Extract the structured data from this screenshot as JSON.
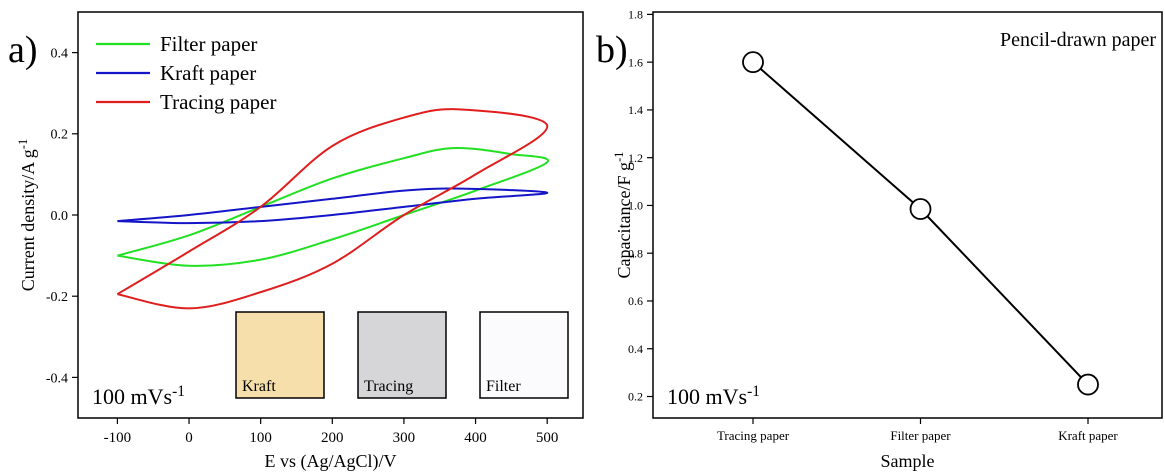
{
  "chart_data": [
    {
      "type": "line",
      "panel_label": "a)",
      "smooth": true,
      "x_label": "E vs (Ag/AgCl)/V",
      "y_label": "Current density/A g",
      "y_label_sup": "-1",
      "annotation": "100 mVs",
      "annotation_sup": "-1",
      "xlim": [
        -155,
        550
      ],
      "ylim": [
        -0.5,
        0.5
      ],
      "xticks": [
        -100,
        0,
        100,
        200,
        300,
        400,
        500
      ],
      "yticks": [
        -0.4,
        -0.2,
        {
          "value": 0,
          "label": "0.0"
        },
        0.2,
        0.4
      ],
      "series": [
        {
          "name": "Filter paper",
          "color": "#22e022",
          "x": [
            -100,
            0,
            100,
            200,
            300,
            370,
            450,
            500,
            400,
            300,
            200,
            100,
            0,
            -100
          ],
          "values": [
            -0.1,
            -0.05,
            0.02,
            0.09,
            0.14,
            0.165,
            0.15,
            0.13,
            0.06,
            0.0,
            -0.06,
            -0.11,
            -0.125,
            -0.1
          ]
        },
        {
          "name": "Kraft paper",
          "color": "#1515c8",
          "x": [
            -100,
            0,
            100,
            200,
            300,
            380,
            500,
            400,
            300,
            200,
            100,
            0,
            -100
          ],
          "values": [
            -0.015,
            0.0,
            0.02,
            0.04,
            0.06,
            0.065,
            0.055,
            0.04,
            0.02,
            0.0,
            -0.015,
            -0.02,
            -0.015
          ]
        },
        {
          "name": "Tracing paper",
          "color": "#e01e1e",
          "x": [
            -100,
            0,
            100,
            200,
            300,
            380,
            500,
            400,
            300,
            200,
            100,
            0,
            -100
          ],
          "values": [
            -0.195,
            -0.09,
            0.02,
            0.17,
            0.24,
            0.26,
            0.22,
            0.1,
            0.0,
            -0.12,
            -0.19,
            -0.23,
            -0.195
          ]
        }
      ],
      "insets": [
        {
          "label": "Kraft",
          "color": "#f6dfaa"
        },
        {
          "label": "Tracing",
          "color": "#d6d6d8"
        },
        {
          "label": "Filter",
          "color": "#fbfbfd"
        }
      ]
    },
    {
      "type": "line",
      "panel_label": "b)",
      "smooth": false,
      "title": "Pencil-drawn paper",
      "x_label": "Sample",
      "y_label": "Capacitance/F g",
      "y_label_sup": "-1",
      "annotation": "100 mVs",
      "annotation_sup": "-1",
      "categories": [
        "Tracing paper",
        "Filter paper",
        "Kraft paper"
      ],
      "ylim": [
        0.11,
        1.81
      ],
      "yticks": [
        0.2,
        0.4,
        0.6,
        0.8,
        {
          "value": 1,
          "label": "1.0"
        },
        1.2,
        1.4,
        1.6,
        1.8
      ],
      "series": [
        {
          "color": "#000000",
          "values": [
            1.6,
            0.985,
            0.25
          ]
        }
      ]
    }
  ]
}
